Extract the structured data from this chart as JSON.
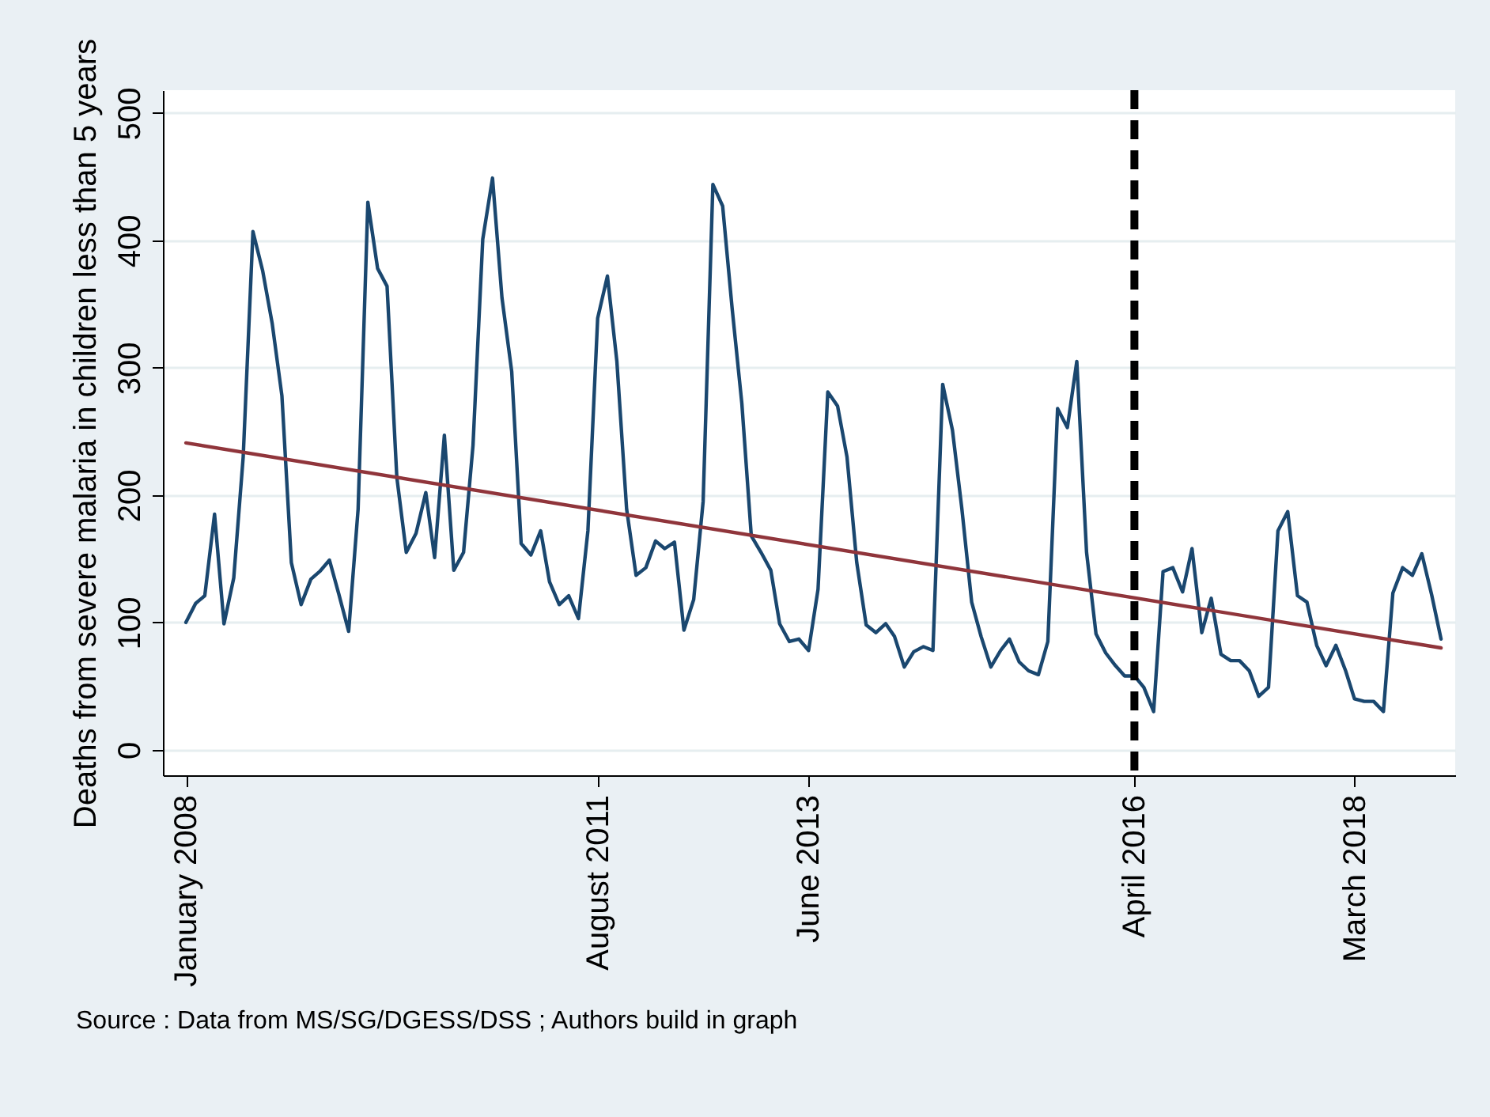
{
  "chart_data": {
    "type": "line",
    "ylabel": "Deaths from severe malaria in children less than 5 years",
    "annotations": [
      "Source : Data from MS/SG/DGESS/DSS ; Authors build in graph"
    ],
    "x": [
      "2008-01",
      "2008-02",
      "2008-03",
      "2008-04",
      "2008-05",
      "2008-06",
      "2008-07",
      "2008-08",
      "2008-09",
      "2008-10",
      "2008-11",
      "2008-12",
      "2009-01",
      "2009-02",
      "2009-03",
      "2009-04",
      "2009-05",
      "2009-06",
      "2009-07",
      "2009-08",
      "2009-09",
      "2009-10",
      "2009-11",
      "2009-12",
      "2010-01",
      "2010-02",
      "2010-03",
      "2010-04",
      "2010-05",
      "2010-06",
      "2010-07",
      "2010-08",
      "2010-09",
      "2010-10",
      "2010-11",
      "2010-12",
      "2011-01",
      "2011-02",
      "2011-03",
      "2011-04",
      "2011-05",
      "2011-06",
      "2011-07",
      "2011-08",
      "2011-09",
      "2011-10",
      "2011-11",
      "2011-12",
      "2012-01",
      "2012-02",
      "2012-03",
      "2012-04",
      "2012-05",
      "2012-06",
      "2012-07",
      "2012-08",
      "2012-09",
      "2012-10",
      "2012-11",
      "2012-12",
      "2013-01",
      "2013-02",
      "2013-03",
      "2013-04",
      "2013-05",
      "2013-06",
      "2013-07",
      "2013-08",
      "2013-09",
      "2013-10",
      "2013-11",
      "2013-12",
      "2014-01",
      "2014-02",
      "2014-03",
      "2014-04",
      "2014-05",
      "2014-06",
      "2014-07",
      "2014-08",
      "2014-09",
      "2014-10",
      "2014-11",
      "2014-12",
      "2015-01",
      "2015-02",
      "2015-03",
      "2015-04",
      "2015-05",
      "2015-06",
      "2015-07",
      "2015-08",
      "2015-09",
      "2015-10",
      "2015-11",
      "2015-12",
      "2016-01",
      "2016-02",
      "2016-03",
      "2016-04",
      "2016-05",
      "2016-06",
      "2016-07",
      "2016-08",
      "2016-09",
      "2016-10",
      "2016-11",
      "2016-12",
      "2017-01",
      "2017-02",
      "2017-03",
      "2017-04",
      "2017-05",
      "2017-06",
      "2017-07",
      "2017-08",
      "2017-09",
      "2017-10",
      "2017-11",
      "2017-12",
      "2018-01",
      "2018-02",
      "2018-03",
      "2018-04",
      "2018-05",
      "2018-06",
      "2018-07",
      "2018-08",
      "2018-09",
      "2018-10",
      "2018-11",
      "2018-12"
    ],
    "series": [
      {
        "color": "#1a476f",
        "values": [
          100,
          115,
          121,
          185,
          99,
          135,
          230,
          407,
          376,
          335,
          278,
          147,
          114,
          134,
          140,
          149,
          122,
          93,
          189,
          430,
          378,
          364,
          214,
          155,
          170,
          202,
          151,
          247,
          141,
          155,
          239,
          401,
          449,
          355,
          297,
          162,
          153,
          172,
          132,
          114,
          121,
          103,
          172,
          339,
          372,
          305,
          189,
          137,
          143,
          164,
          158,
          163,
          94,
          118,
          195,
          444,
          427,
          347,
          272,
          168,
          155,
          141,
          99,
          85,
          87,
          78,
          126,
          281,
          270,
          230,
          147,
          98,
          92,
          99,
          89,
          65,
          77,
          81,
          78,
          287,
          251,
          189,
          116,
          89,
          65,
          78,
          87,
          69,
          62,
          59,
          85,
          268,
          253,
          305,
          155,
          91,
          76,
          66,
          58,
          58,
          49,
          30,
          140,
          143,
          124,
          158,
          92,
          119,
          75,
          70,
          70,
          62,
          42,
          49,
          172,
          187,
          121,
          116,
          82,
          66,
          82,
          62,
          40,
          38,
          38,
          30,
          123,
          143,
          137,
          154,
          122,
          87
        ]
      },
      {
        "type": "line",
        "color": "#90353b",
        "x": [
          "2008-01",
          "2018-12"
        ],
        "values": [
          241,
          80
        ]
      }
    ],
    "xlim": [
      "2007-10-20",
      "2019-01-15"
    ],
    "xticks": [
      {
        "value": "2008-01",
        "label": "January 2008"
      },
      {
        "value": "2011-08",
        "label": "August 2011"
      },
      {
        "value": "2013-06",
        "label": "June 2013"
      },
      {
        "value": "2016-04",
        "label": "April 2016"
      },
      {
        "value": "2018-03",
        "label": "March 2018"
      }
    ],
    "ylim": [
      -20,
      518
    ],
    "yticks": [
      0,
      100,
      200,
      300,
      400,
      500
    ],
    "grid": "y",
    "ref_lines": [
      {
        "axis": "x",
        "value": "2016-04",
        "color": "#000000",
        "line_style": "dashed"
      }
    ]
  }
}
